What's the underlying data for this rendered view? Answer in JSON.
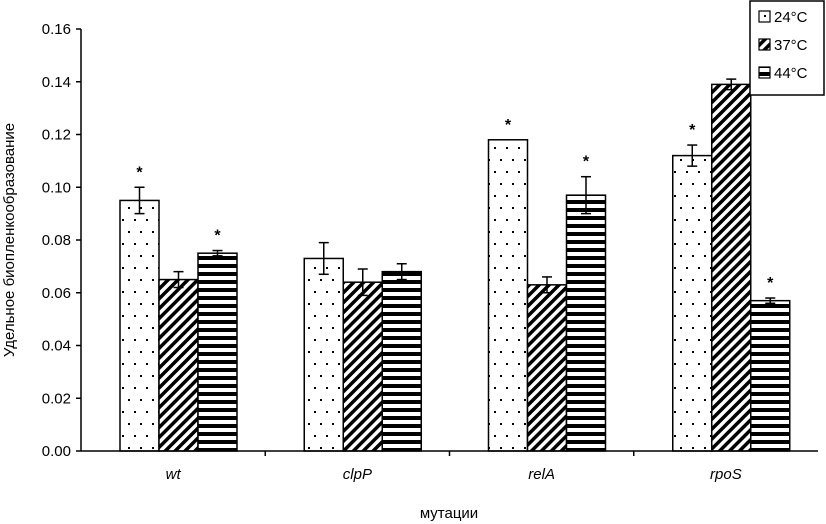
{
  "chart_data": {
    "type": "bar",
    "title": "",
    "xlabel": "мутации",
    "ylabel": "Удельное биопленкообразование",
    "ylim": [
      0,
      0.16
    ],
    "yticks": [
      "0.00",
      "0.02",
      "0.04",
      "0.06",
      "0.08",
      "0.10",
      "0.12",
      "0.14",
      "0.16"
    ],
    "grid": false,
    "legend_position": "top-right",
    "categories": [
      "wt",
      "clpP",
      "relA",
      "rpoS"
    ],
    "series": [
      {
        "name": "24°C",
        "pattern": "dots",
        "values": [
          0.095,
          0.073,
          0.118,
          0.112
        ],
        "errors": [
          0.005,
          0.006,
          0.0,
          0.004
        ],
        "markers": [
          "*",
          "",
          "*",
          "*"
        ]
      },
      {
        "name": "37°C",
        "pattern": "diagonal",
        "values": [
          0.065,
          0.064,
          0.063,
          0.139
        ],
        "errors": [
          0.003,
          0.005,
          0.003,
          0.002
        ],
        "markers": [
          "",
          "",
          "",
          ""
        ]
      },
      {
        "name": "44°C",
        "pattern": "horizontal",
        "values": [
          0.075,
          0.068,
          0.097,
          0.057
        ],
        "errors": [
          0.001,
          0.003,
          0.007,
          0.001
        ],
        "markers": [
          "*",
          "",
          "*",
          "*"
        ]
      }
    ]
  }
}
